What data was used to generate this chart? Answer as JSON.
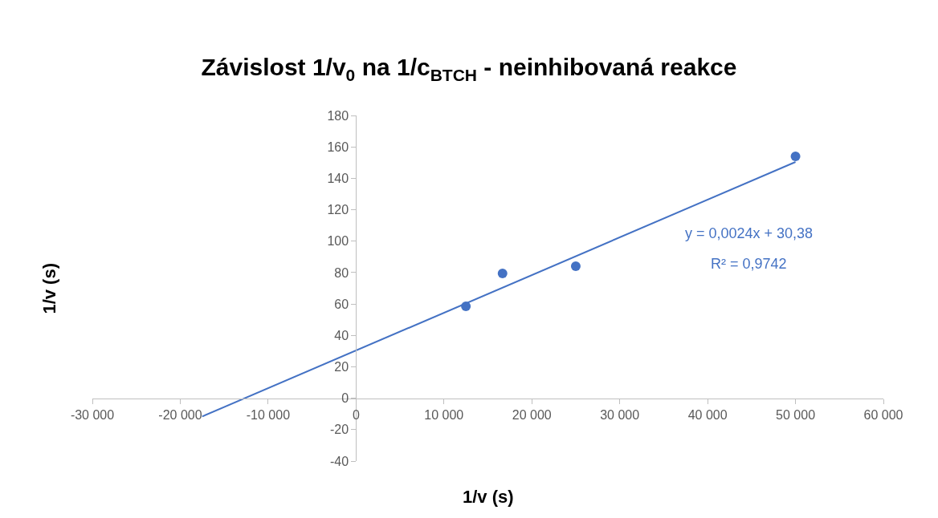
{
  "chart_data": {
    "type": "scatter",
    "title": "Závislost 1/v$_{0}$ na 1/c$_{BTCH}$ - neinhibovaná reakce",
    "xlabel": "1/v (s)",
    "ylabel": "1/v (s)",
    "x": [
      12500,
      16667,
      25000,
      50000
    ],
    "series": [
      {
        "color": "#4472c4",
        "values": [
          58.5,
          79.5,
          84,
          154
        ],
        "marker": "circle"
      },
      {
        "type": "line",
        "color": "#4472c4",
        "x": [
          -17500,
          50000
        ],
        "values": [
          -11.6,
          150.4
        ],
        "line_style": "solid"
      }
    ],
    "annotations": [
      "y = 0,0024x + 30,38",
      "R² = 0,9742"
    ],
    "xlim": [
      -30000,
      60000
    ],
    "xticks": [
      {
        "value": -30000,
        "label": "-30 000"
      },
      {
        "value": -20000,
        "label": "-20 000"
      },
      {
        "value": -10000,
        "label": "-10 000"
      },
      0,
      {
        "value": 10000,
        "label": "10 000"
      },
      {
        "value": 20000,
        "label": "20 000"
      },
      {
        "value": 30000,
        "label": "30 000"
      },
      {
        "value": 40000,
        "label": "40 000"
      },
      {
        "value": 50000,
        "label": "50 000"
      },
      {
        "value": 60000,
        "label": "60 000"
      }
    ],
    "ylim": [
      -40,
      180
    ],
    "yticks": [
      -40,
      -20,
      0,
      20,
      40,
      60,
      80,
      100,
      120,
      140,
      160,
      180
    ],
    "grid": false
  }
}
